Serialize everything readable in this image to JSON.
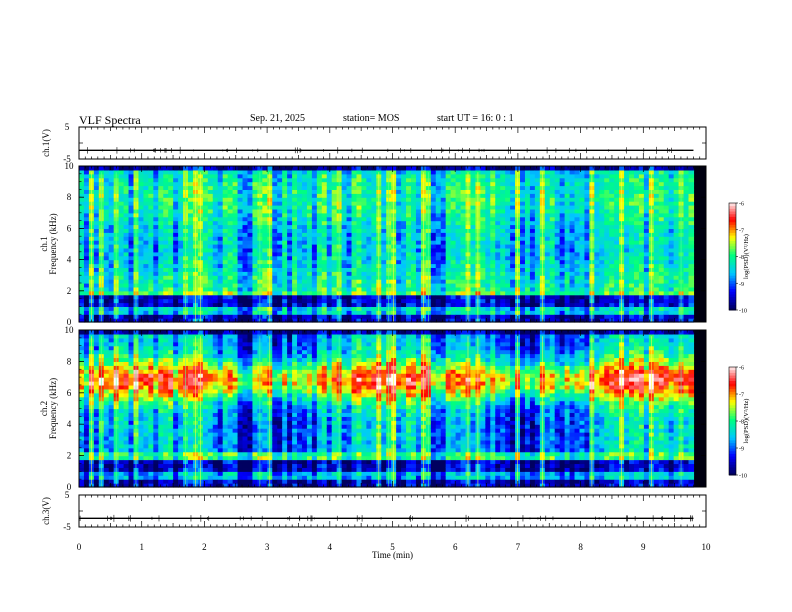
{
  "header": {
    "title": "VLF Spectra",
    "date": "Sep. 21, 2025",
    "station": "station= MOS",
    "start": "start  UT =   16: 0  : 1"
  },
  "chart_data": [
    {
      "type": "line",
      "name_label": "ch.1(V)",
      "ylabel": "ch.1(V)",
      "ylim": [
        -5,
        5
      ],
      "y_ticks": [
        "5",
        "-5"
      ],
      "x_range": [
        0,
        10
      ],
      "series": [
        {
          "values_description_level": -2.3
        }
      ]
    },
    {
      "type": "heatmap",
      "ylabel": "ch.1 Frequency (kHz)",
      "ylabel_line1": "ch.1",
      "ylabel_line2": "Frequency (kHz)",
      "ylim": [
        0,
        10
      ],
      "y_ticks": [
        "0",
        "2",
        "4",
        "6",
        "8",
        "10"
      ],
      "x_range": [
        0,
        10
      ],
      "data_end_min": 9.8,
      "colorbar": {
        "label": "log(PSD)(V²/Hz)",
        "range": [
          -10,
          -6
        ],
        "ticks": [
          "-6",
          "-7",
          "-8",
          "-9",
          "-10"
        ]
      }
    },
    {
      "type": "heatmap",
      "ylabel": "ch.2 Frequency (kHz)",
      "ylabel_line1": "ch.2",
      "ylabel_line2": "Frequency (kHz)",
      "ylim": [
        0,
        10
      ],
      "y_ticks": [
        "0",
        "2",
        "4",
        "6",
        "8",
        "10"
      ],
      "x_range": [
        0,
        10
      ],
      "data_end_min": 9.8,
      "colorbar": {
        "label": "log(PSD)(V²/Hz)",
        "range": [
          -10,
          -6
        ],
        "ticks": [
          "-6",
          "-7",
          "-8",
          "-9",
          "-10"
        ]
      }
    },
    {
      "type": "line",
      "ylabel": "ch.3(V)",
      "ylim": [
        -5,
        5
      ],
      "y_ticks": [
        "5",
        "-5"
      ],
      "x_range": [
        0,
        10
      ],
      "series": [
        {
          "values_description_level": -2.3
        }
      ]
    }
  ],
  "x_axis": {
    "label": "Time  (min)",
    "ticks": [
      "0",
      "1",
      "2",
      "3",
      "4",
      "5",
      "6",
      "7",
      "8",
      "9",
      "10"
    ],
    "range": [
      0,
      10
    ]
  },
  "colors": {
    "axis": "#000000",
    "trace": "#000000",
    "colormap": [
      "#000060",
      "#0000ff",
      "#00c8ff",
      "#00ff80",
      "#ffff00",
      "#ff0000",
      "#ffffff"
    ]
  }
}
